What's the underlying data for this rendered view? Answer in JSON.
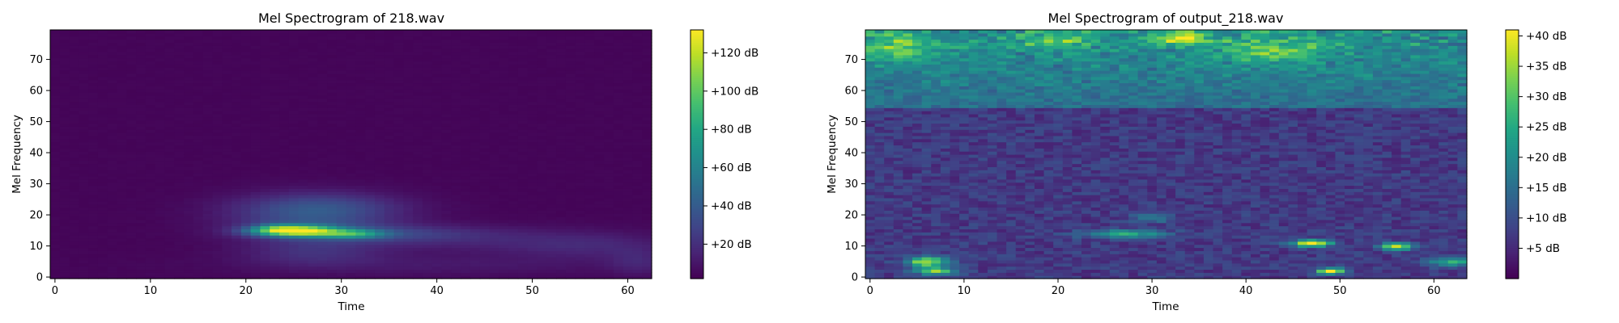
{
  "chart_data": [
    {
      "type": "heatmap",
      "title": "Mel Spectrogram of 218.wav",
      "xlabel": "Time",
      "ylabel": "Mel Frequency",
      "xlim": [
        -0.5,
        62.5
      ],
      "ylim": [
        -0.5,
        79.5
      ],
      "x_ticks": [
        0,
        10,
        20,
        30,
        40,
        50,
        60
      ],
      "y_ticks": [
        0,
        10,
        20,
        30,
        40,
        50,
        60,
        70
      ],
      "x_tick_labels": [
        "0",
        "10",
        "20",
        "30",
        "40",
        "50",
        "60"
      ],
      "y_tick_labels": [
        "0",
        "10",
        "20",
        "30",
        "40",
        "50",
        "60",
        "70"
      ],
      "n_time": 63,
      "n_mel": 80,
      "colormap": "viridis",
      "colorbar": {
        "range_db": [
          2,
          132
        ],
        "ticks": [
          20,
          40,
          60,
          80,
          100,
          120
        ],
        "tick_labels": [
          "+20 dB",
          "+40 dB",
          "+60 dB",
          "+80 dB",
          "+100 dB",
          "+120 dB"
        ]
      },
      "background_db": 3,
      "blobs": [
        {
          "t": 25,
          "m": 15,
          "st": 3.0,
          "sm": 1.2,
          "db": 118
        },
        {
          "t": 23,
          "m": 16,
          "st": 1.2,
          "sm": 1.0,
          "db": 15
        },
        {
          "t": 31,
          "m": 14,
          "st": 2.5,
          "sm": 1.0,
          "db": 52
        },
        {
          "t": 27,
          "m": 19,
          "st": 6.0,
          "sm": 5.0,
          "db": 28
        },
        {
          "t": 28,
          "m": 23,
          "st": 6.0,
          "sm": 3.0,
          "db": 14
        },
        {
          "t": 35,
          "m": 14,
          "st": 7.0,
          "sm": 2.0,
          "db": 18
        },
        {
          "t": 27,
          "m": 8,
          "st": 5.0,
          "sm": 3.0,
          "db": 14
        },
        {
          "t": 45,
          "m": 12,
          "st": 10.0,
          "sm": 3.0,
          "db": 9
        },
        {
          "t": 56,
          "m": 10,
          "st": 6.0,
          "sm": 3.0,
          "db": 10
        },
        {
          "t": 61,
          "m": 5,
          "st": 2.0,
          "sm": 3.0,
          "db": 10
        },
        {
          "t": 40,
          "m": 4,
          "st": 15.0,
          "sm": 2.5,
          "db": 7
        }
      ]
    },
    {
      "type": "heatmap",
      "title": "Mel Spectrogram of output_218.wav",
      "xlabel": "Time",
      "ylabel": "Mel Frequency",
      "xlim": [
        -0.5,
        63.5
      ],
      "ylim": [
        -0.5,
        79.5
      ],
      "x_ticks": [
        0,
        10,
        20,
        30,
        40,
        50,
        60
      ],
      "y_ticks": [
        0,
        10,
        20,
        30,
        40,
        50,
        60,
        70
      ],
      "x_tick_labels": [
        "0",
        "10",
        "20",
        "30",
        "40",
        "50",
        "60"
      ],
      "y_tick_labels": [
        "0",
        "10",
        "20",
        "30",
        "40",
        "50",
        "60",
        "70"
      ],
      "n_time": 64,
      "n_mel": 80,
      "colormap": "viridis",
      "colorbar": {
        "range_db": [
          0,
          41
        ],
        "ticks": [
          5,
          10,
          15,
          20,
          25,
          30,
          35,
          40
        ],
        "tick_labels": [
          "+5 dB",
          "+10 dB",
          "+15 dB",
          "+20 dB",
          "+25 dB",
          "+30 dB",
          "+35 dB",
          "+40 dB"
        ]
      },
      "background_db": 7,
      "high_band": {
        "start_mel": 55,
        "end_mel": 79,
        "db_low": 8,
        "db_high": 20
      },
      "noise_db": 6,
      "blobs": [
        {
          "t": 6,
          "m": 5,
          "st": 1.5,
          "sm": 1.2,
          "db": 30
        },
        {
          "t": 7,
          "m": 2,
          "st": 1.5,
          "sm": 0.8,
          "db": 28
        },
        {
          "t": 27,
          "m": 14,
          "st": 3.0,
          "sm": 1.0,
          "db": 18
        },
        {
          "t": 30,
          "m": 19,
          "st": 1.5,
          "sm": 1.0,
          "db": 10
        },
        {
          "t": 47,
          "m": 11,
          "st": 1.5,
          "sm": 0.8,
          "db": 33
        },
        {
          "t": 49,
          "m": 2,
          "st": 1.0,
          "sm": 0.7,
          "db": 38
        },
        {
          "t": 56,
          "m": 10,
          "st": 1.2,
          "sm": 0.8,
          "db": 33
        },
        {
          "t": 62,
          "m": 5,
          "st": 2.0,
          "sm": 1.0,
          "db": 18
        },
        {
          "t": 33,
          "m": 77,
          "st": 2.0,
          "sm": 1.5,
          "db": 20
        },
        {
          "t": 43,
          "m": 73,
          "st": 4.0,
          "sm": 3.0,
          "db": 12
        },
        {
          "t": 20,
          "m": 76,
          "st": 3.0,
          "sm": 2.0,
          "db": 10
        },
        {
          "t": 3,
          "m": 74,
          "st": 3.0,
          "sm": 3.0,
          "db": 12
        }
      ]
    }
  ]
}
